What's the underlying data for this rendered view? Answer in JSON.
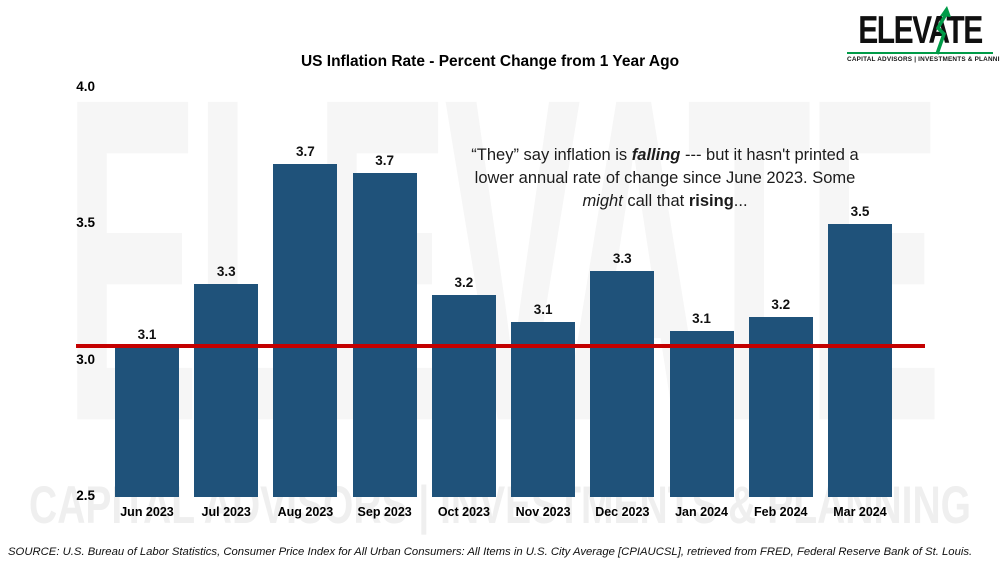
{
  "logo": {
    "wordmark": "ELEVATE",
    "tagline": "CAPITAL ADVISORS | INVESTMENTS & PLANNING",
    "arrow_color": "#009B48",
    "wordmark_color": "#101010"
  },
  "watermark": {
    "big_text": "ELEVATE",
    "bottom_text": "CAPITAL ADVISORS | INVESTMENTS & PLANNING"
  },
  "chart_data": {
    "type": "bar",
    "title": "US Inflation Rate - Percent Change from 1 Year Ago",
    "categories": [
      "Jun 2023",
      "Jul 2023",
      "Aug 2023",
      "Sep 2023",
      "Oct 2023",
      "Nov 2023",
      "Dec 2023",
      "Jan 2024",
      "Feb 2024",
      "Mar 2024"
    ],
    "values": [
      3.1,
      3.3,
      3.7,
      3.7,
      3.2,
      3.1,
      3.3,
      3.1,
      3.2,
      3.5
    ],
    "value_labels": [
      "3.1",
      "3.3",
      "3.7",
      "3.7",
      "3.2",
      "3.1",
      "3.3",
      "3.1",
      "3.2",
      "3.5"
    ],
    "precise_values": [
      3.05,
      3.28,
      3.72,
      3.69,
      3.24,
      3.14,
      3.33,
      3.11,
      3.16,
      3.5
    ],
    "xlabel": "",
    "ylabel": "",
    "ylim": [
      2.5,
      4.0
    ],
    "yticks": [
      {
        "label": "4.0",
        "value": 4.0
      },
      {
        "label": "3.5",
        "value": 3.5
      },
      {
        "label": "3.0",
        "value": 3.0
      },
      {
        "label": "2.5",
        "value": 2.5
      }
    ],
    "gridlines": false,
    "legend_position": "none",
    "bar_color": "#1F527A",
    "reference_line": {
      "value": 3.055,
      "color": "#C40000"
    }
  },
  "annotation": {
    "segments": [
      {
        "text": "“They” say inflation is ",
        "style": "normal"
      },
      {
        "text": "falling",
        "style": "bold-italic"
      },
      {
        "text": " --- but it hasn't printed a",
        "style": "normal"
      },
      {
        "style": "break"
      },
      {
        "text": "lower annual rate of change since June 2023. Some",
        "style": "normal"
      },
      {
        "style": "break"
      },
      {
        "text": "might",
        "style": "italic"
      },
      {
        "text": " call that ",
        "style": "normal"
      },
      {
        "text": "rising",
        "style": "bold"
      },
      {
        "text": "...",
        "style": "normal"
      }
    ]
  },
  "source": {
    "text": "SOURCE: U.S. Bureau of Labor Statistics, Consumer Price Index for All Urban Consumers: All Items in U.S. City Average [CPIAUCSL], retrieved from FRED, Federal Reserve Bank of St. Louis."
  }
}
